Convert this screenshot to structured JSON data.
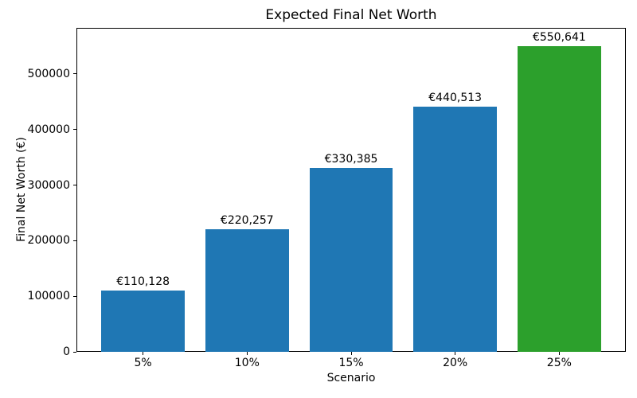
{
  "chart_data": {
    "type": "bar",
    "title": "Expected Final Net Worth",
    "xlabel": "Scenario",
    "ylabel": "Final Net Worth (€)",
    "categories": [
      "5%",
      "10%",
      "15%",
      "20%",
      "25%"
    ],
    "values": [
      110128,
      220257,
      330385,
      440513,
      550641
    ],
    "value_labels": [
      "€110,128",
      "€220,257",
      "€330,385",
      "€440,513",
      "€550,641"
    ],
    "bar_colors": [
      "#1f77b4",
      "#1f77b4",
      "#1f77b4",
      "#1f77b4",
      "#2ca02c"
    ],
    "y_ticks": [
      0,
      100000,
      200000,
      300000,
      400000,
      500000
    ],
    "y_tick_labels": [
      "0",
      "100000",
      "200000",
      "300000",
      "400000",
      "500000"
    ],
    "ylim": [
      0,
      583000
    ],
    "bar_width_fraction": 0.8,
    "grid": false,
    "legend": null
  },
  "colors": {
    "background": "#ffffff",
    "axis": "#000000",
    "text": "#000000",
    "bar_default": "#1f77b4",
    "bar_highlight": "#2ca02c"
  }
}
